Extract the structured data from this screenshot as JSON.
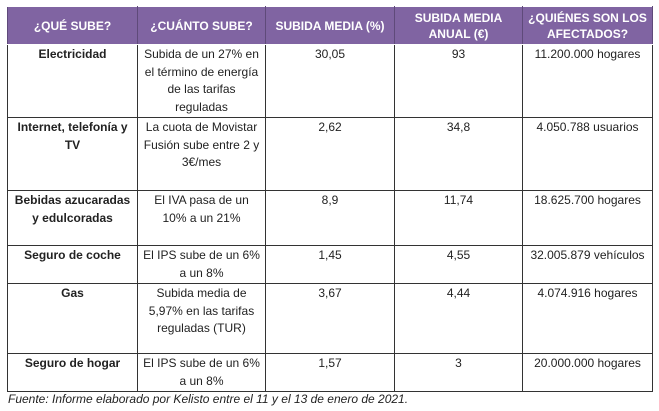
{
  "colors": {
    "header_bg": "#8064a2",
    "header_text": "#ffffff"
  },
  "headers": [
    "¿QUÉ SUBE?",
    "¿CUÁNTO SUBE?",
    "SUBIDA MEDIA (%)",
    "SUBIDA MEDIA ANUAL (€)",
    "¿QUIÉNES SON LOS AFECTADOS?"
  ],
  "rows": [
    {
      "item": "Electricidad",
      "how": "Subida de un 27% en el término de energía de las tarifas reguladas",
      "pct": "30,05",
      "annual": "93",
      "affected": "11.200.000 hogares"
    },
    {
      "item": "Internet, telefonía y TV",
      "how": "La cuota de Movistar Fusión sube entre 2 y 3€/mes",
      "pct": "2,62",
      "annual": "34,8",
      "affected": "4.050.788 usuarios"
    },
    {
      "item": "Bebidas azucaradas y edulcoradas",
      "how": "El IVA pasa de un 10% a un 21%",
      "pct": "8,9",
      "annual": "11,74",
      "affected": "18.625.700 hogares"
    },
    {
      "item": "Seguro de coche",
      "how": "El IPS sube de un 6% a un 8%",
      "pct": "1,45",
      "annual": "4,55",
      "affected": "32.005.879 vehículos"
    },
    {
      "item": "Gas",
      "how": "Subida media de 5,97% en las tarifas reguladas (TUR)",
      "pct": "3,67",
      "annual": "4,44",
      "affected": "4.074.916 hogares"
    },
    {
      "item": "Seguro de hogar",
      "how": "El IPS sube de un 6% a un 8%",
      "pct": "1,57",
      "annual": "3",
      "affected": "20.000.000 hogares"
    }
  ],
  "footer": "Fuente: Informe elaborado por Kelisto entre el 11 y el 13 de enero de 2021."
}
